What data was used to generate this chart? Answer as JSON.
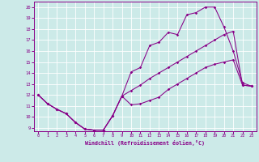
{
  "bg_color": "#cceae8",
  "line_color": "#880088",
  "grid_color": "#ffffff",
  "xlabel": "Windchill (Refroidissement éolien,°C)",
  "xlim": [
    -0.5,
    23.5
  ],
  "ylim": [
    8.7,
    20.5
  ],
  "xticks": [
    0,
    1,
    2,
    3,
    4,
    5,
    6,
    7,
    8,
    9,
    10,
    11,
    12,
    13,
    14,
    15,
    16,
    17,
    18,
    19,
    20,
    21,
    22,
    23
  ],
  "yticks": [
    9,
    10,
    11,
    12,
    13,
    14,
    15,
    16,
    17,
    18,
    19,
    20
  ],
  "line1_x": [
    0,
    1,
    2,
    3,
    4,
    5,
    6,
    7,
    8,
    9,
    10,
    11,
    12,
    13,
    14,
    15,
    16,
    17,
    18,
    19,
    20,
    21,
    22,
    23
  ],
  "line1_y": [
    12.0,
    11.2,
    10.7,
    10.3,
    9.5,
    8.9,
    8.8,
    8.8,
    10.1,
    11.9,
    11.1,
    11.2,
    11.5,
    11.8,
    12.5,
    13.0,
    13.5,
    14.0,
    14.5,
    14.8,
    15.0,
    15.2,
    12.9,
    12.8
  ],
  "line2_x": [
    0,
    1,
    2,
    3,
    4,
    5,
    6,
    7,
    8,
    9,
    10,
    11,
    12,
    13,
    14,
    15,
    16,
    17,
    18,
    19,
    20,
    21,
    22,
    23
  ],
  "line2_y": [
    12.0,
    11.2,
    10.7,
    10.3,
    9.5,
    8.9,
    8.8,
    8.8,
    10.1,
    11.9,
    14.1,
    14.5,
    16.5,
    16.8,
    17.7,
    17.5,
    19.3,
    19.5,
    20.0,
    20.0,
    18.2,
    16.0,
    13.1,
    12.8
  ],
  "line3_x": [
    0,
    1,
    2,
    3,
    4,
    5,
    6,
    7,
    8,
    9,
    10,
    11,
    12,
    13,
    14,
    15,
    16,
    17,
    18,
    19,
    20,
    21,
    22,
    23
  ],
  "line3_y": [
    12.0,
    11.2,
    10.7,
    10.3,
    9.5,
    8.9,
    8.8,
    8.8,
    10.1,
    11.9,
    12.4,
    12.9,
    13.5,
    14.0,
    14.5,
    15.0,
    15.5,
    16.0,
    16.5,
    17.0,
    17.5,
    17.8,
    12.9,
    12.8
  ]
}
